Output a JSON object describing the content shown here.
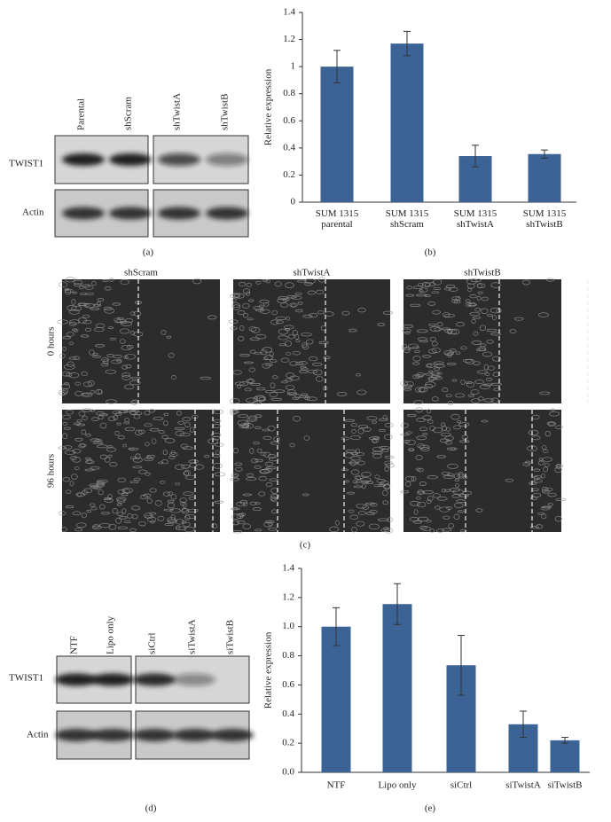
{
  "panels": {
    "a": "(a)",
    "b": "(b)",
    "c": "(c)",
    "d": "(d)",
    "e": "(e)"
  },
  "blot_a": {
    "lanes": [
      "Parental",
      "shScram",
      "shTwistA",
      "shTwistB"
    ],
    "rows": [
      "TWIST1",
      "Actin"
    ]
  },
  "migration": {
    "columns": [
      "shScram",
      "shTwistA",
      "shTwistB"
    ],
    "rows": [
      "0 hours",
      "96 hours"
    ]
  },
  "blot_d": {
    "lanes": [
      "NTF",
      "Lipo only",
      "siCtrl",
      "siTwistA",
      "siTwistB"
    ],
    "rows": [
      "TWIST1",
      "Actin"
    ]
  },
  "chart_data": [
    {
      "type": "bar",
      "y_label": "Relative expression",
      "color": "#3b6396",
      "categories": [
        "SUM 1315 parental",
        "SUM 1315 shScram",
        "SUM 1315 shTwistA",
        "SUM 1315 shTwistB"
      ],
      "values": [
        1.0,
        1.17,
        0.34,
        0.355
      ],
      "errors": [
        0.12,
        0.09,
        0.08,
        0.03
      ],
      "ylim": [
        0,
        1.4
      ],
      "yticks": [
        0,
        0.2,
        0.4,
        0.6,
        0.8,
        1,
        1.2,
        1.4
      ],
      "grid": false
    },
    {
      "type": "bar",
      "y_label": "Relative expression",
      "color": "#3b6396",
      "categories": [
        "NTF",
        "Lipo only",
        "siCtrl",
        "siTwistA",
        "siTwistB"
      ],
      "values": [
        1.0,
        1.155,
        0.735,
        0.33,
        0.22
      ],
      "errors": [
        0.13,
        0.14,
        0.205,
        0.09,
        0.02
      ],
      "ylim": [
        0,
        1.4
      ],
      "yticks": [
        {
          "value": 0,
          "label": "0.0"
        },
        0.2,
        0.4,
        0.6,
        0.8,
        {
          "value": 1,
          "label": "1.0"
        },
        1.2,
        1.4
      ],
      "grid": false
    }
  ]
}
